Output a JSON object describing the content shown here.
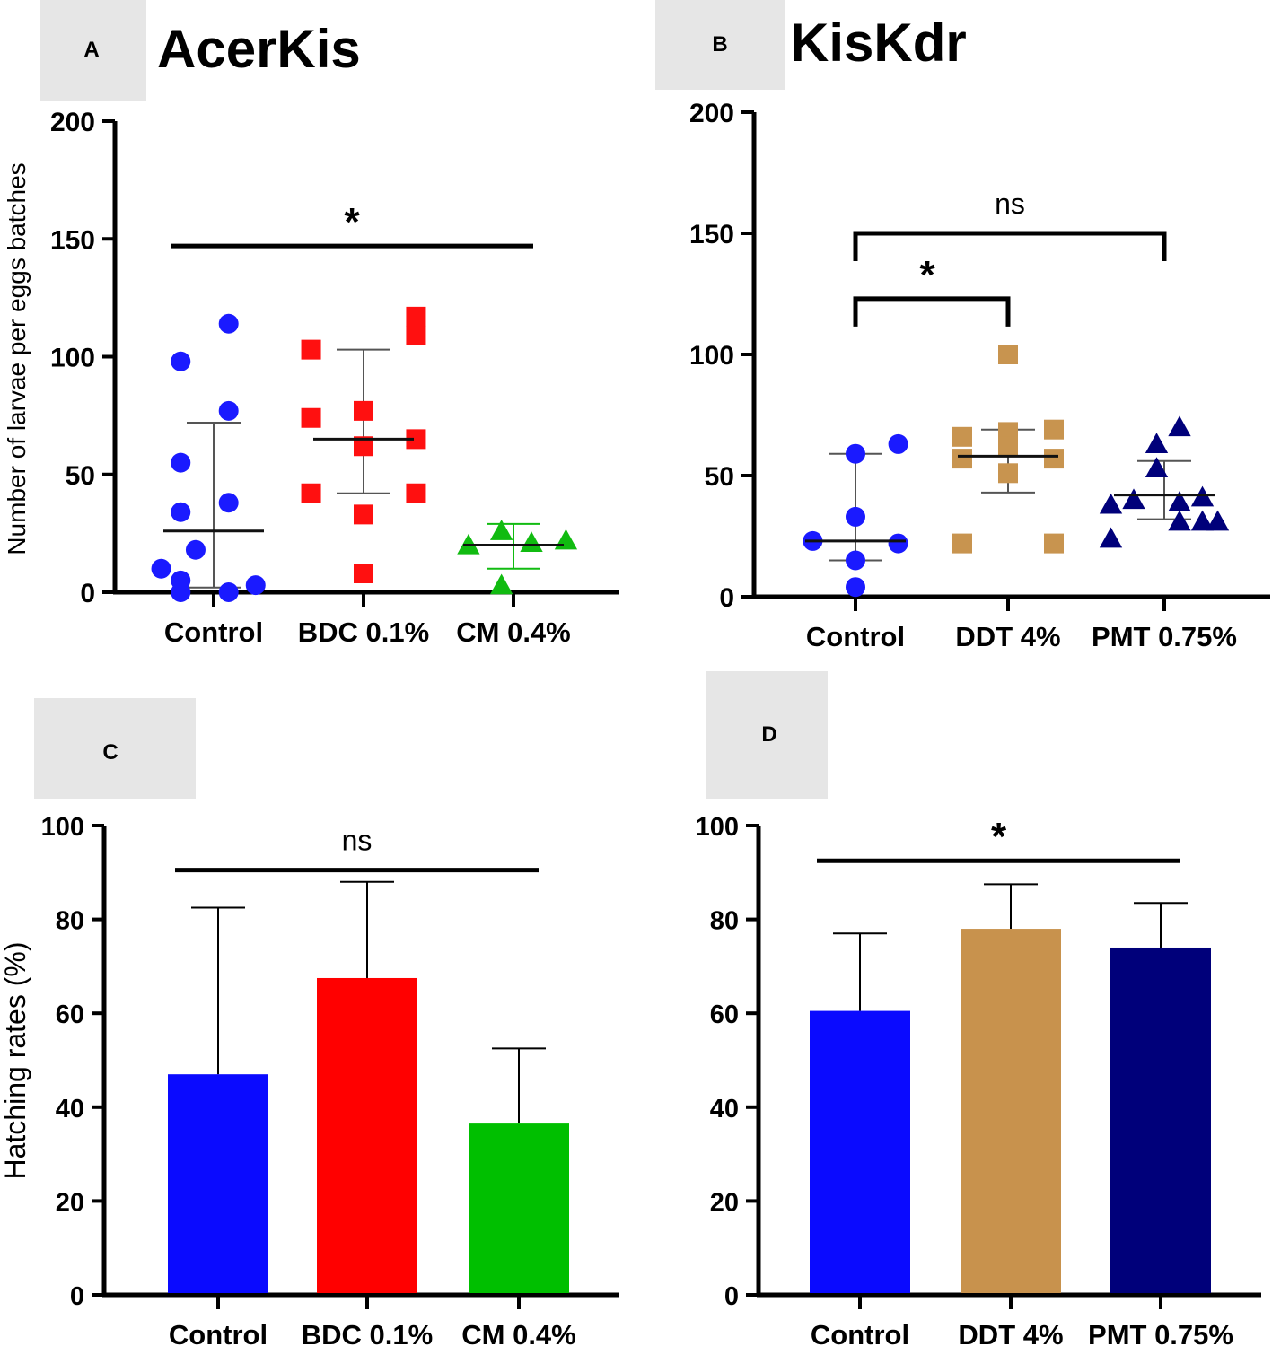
{
  "chart_data": [
    {
      "panel_label": "A",
      "title": "AcerKis",
      "type": "scatter",
      "ylabel": "Number of larvae per eggs batches",
      "ylim": [
        0,
        200
      ],
      "yticks": [
        "0",
        "50",
        "100",
        "150",
        "200"
      ],
      "categories": [
        "Control",
        "BDC 0.1%",
        "CM 0.4%"
      ],
      "colors": [
        "#1a1aff",
        "#ff1010",
        "#11bb11"
      ],
      "markers": [
        "circle",
        "square",
        "triangle"
      ],
      "series": [
        {
          "name": "Control",
          "points": [
            [
              -0.35,
              10
            ],
            [
              -0.22,
              0
            ],
            [
              -0.22,
              5
            ],
            [
              -0.22,
              34
            ],
            [
              -0.22,
              55
            ],
            [
              -0.22,
              98
            ],
            [
              -0.12,
              18
            ],
            [
              0.1,
              38
            ],
            [
              0.1,
              77
            ],
            [
              0.1,
              114
            ],
            [
              0.1,
              0
            ],
            [
              0.28,
              3
            ]
          ],
          "mean": 26,
          "sd_low": 2,
          "sd_high": 72
        },
        {
          "name": "BDC 0.1%",
          "points": [
            [
              -0.35,
              103
            ],
            [
              -0.35,
              74
            ],
            [
              -0.35,
              42
            ],
            [
              0,
              77
            ],
            [
              0,
              62
            ],
            [
              0,
              33
            ],
            [
              0,
              8
            ],
            [
              0.35,
              117
            ],
            [
              0.35,
              109
            ],
            [
              0.35,
              65
            ],
            [
              0.35,
              42
            ]
          ],
          "mean": 65,
          "sd_low": 42,
          "sd_high": 103
        },
        {
          "name": "CM 0.4%",
          "points": [
            [
              -0.3,
              20
            ],
            [
              -0.08,
              26
            ],
            [
              -0.08,
              3
            ],
            [
              0.12,
              21
            ],
            [
              0.35,
              22
            ]
          ],
          "mean": 20,
          "sd_low": 10,
          "sd_high": 29
        }
      ],
      "significance": [
        {
          "label": "*",
          "from": 0,
          "to": 2,
          "y": 147,
          "style": "line"
        }
      ]
    },
    {
      "panel_label": "B",
      "title": "KisKdr",
      "type": "scatter",
      "ylabel": "",
      "ylim": [
        0,
        200
      ],
      "yticks": [
        "0",
        "50",
        "100",
        "150",
        "200"
      ],
      "categories": [
        "Control",
        "DDT 4%",
        "PMT 0.75%"
      ],
      "colors": [
        "#1a1aff",
        "#c8944f",
        "#00007a"
      ],
      "markers": [
        "circle",
        "square",
        "triangle"
      ],
      "series": [
        {
          "name": "Control",
          "points": [
            [
              -0.28,
              23
            ],
            [
              0,
              59
            ],
            [
              0,
              33
            ],
            [
              0,
              15
            ],
            [
              0,
              4
            ],
            [
              0.28,
              22
            ],
            [
              0.28,
              63
            ]
          ],
          "mean": 23,
          "sd_low": 15,
          "sd_high": 59
        },
        {
          "name": "DDT 4%",
          "points": [
            [
              -0.3,
              22
            ],
            [
              -0.3,
              66
            ],
            [
              -0.3,
              57
            ],
            [
              0,
              100
            ],
            [
              0,
              68
            ],
            [
              0,
              62
            ],
            [
              0,
              51
            ],
            [
              0.3,
              69
            ],
            [
              0.3,
              57
            ],
            [
              0.3,
              22
            ]
          ],
          "mean": 58,
          "sd_low": 43,
          "sd_high": 69
        },
        {
          "name": "PMT 0.75%",
          "points": [
            [
              -0.35,
              24
            ],
            [
              -0.35,
              38
            ],
            [
              -0.2,
              40
            ],
            [
              -0.05,
              63
            ],
            [
              -0.05,
              53
            ],
            [
              0.1,
              39
            ],
            [
              0.1,
              31
            ],
            [
              0.1,
              70
            ],
            [
              0.25,
              31
            ],
            [
              0.25,
              41
            ],
            [
              0.35,
              31
            ]
          ],
          "mean": 42,
          "sd_low": 32,
          "sd_high": 56
        }
      ],
      "significance": [
        {
          "label": "ns",
          "from": 0,
          "to": 2,
          "y": 150,
          "style": "bracket"
        },
        {
          "label": "*",
          "from": 0,
          "to": 1,
          "y": 123,
          "style": "bracket"
        }
      ]
    },
    {
      "panel_label": "C",
      "title": "",
      "type": "bar",
      "ylabel": "Hatching rates (%)",
      "ylim": [
        0,
        100
      ],
      "yticks": [
        "0",
        "20",
        "40",
        "60",
        "80",
        "100"
      ],
      "categories": [
        "Control",
        "BDC 0.1%",
        "CM 0.4%"
      ],
      "colors": [
        "#0a0aff",
        "#ff0000",
        "#00bf00"
      ],
      "values": [
        47,
        67.5,
        36.5
      ],
      "errors": [
        35.5,
        20.5,
        16
      ],
      "significance": [
        {
          "label": "ns",
          "from": 0,
          "to": 2,
          "y": 90.5,
          "style": "line"
        }
      ]
    },
    {
      "panel_label": "D",
      "title": "",
      "type": "bar",
      "ylabel": "",
      "ylim": [
        0,
        100
      ],
      "yticks": [
        "0",
        "20",
        "40",
        "60",
        "80",
        "100"
      ],
      "categories": [
        "Control",
        "DDT 4%",
        "PMT 0.75%"
      ],
      "colors": [
        "#0a0aff",
        "#c8924d",
        "#00007a"
      ],
      "values": [
        60.5,
        78,
        74
      ],
      "errors": [
        16.5,
        9.5,
        9.5
      ],
      "significance": [
        {
          "label": "*",
          "from": 0,
          "to": 2,
          "y": 92.5,
          "style": "line"
        }
      ]
    }
  ]
}
